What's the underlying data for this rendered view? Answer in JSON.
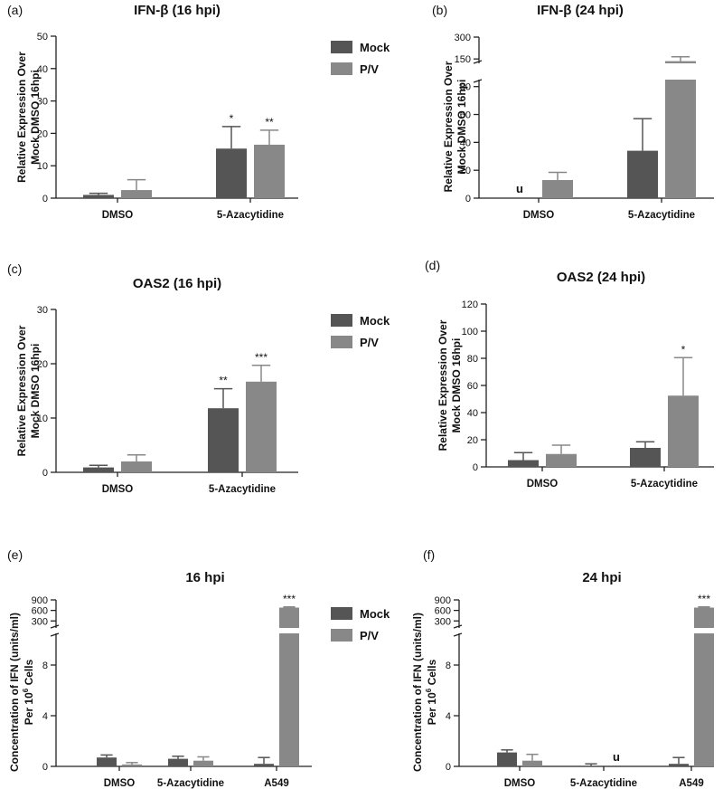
{
  "colors": {
    "mock": "#555555",
    "pv": "#888888",
    "axis": "#222222"
  },
  "legend": {
    "mock": "Mock",
    "pv": "P/V"
  },
  "chart_data": [
    {
      "id": "a",
      "panel_label": "(a)",
      "type": "bar",
      "title": "IFN-β (16 hpi)",
      "ylabel": [
        "Relative Expression Over",
        "Mock DMSO 16hpi"
      ],
      "categories": [
        "DMSO",
        "5-Azacytidine"
      ],
      "series": [
        {
          "name": "Mock",
          "values": [
            1.0,
            15.3
          ],
          "errors": [
            0.5,
            6.8
          ],
          "annotations": [
            "",
            "*"
          ]
        },
        {
          "name": "P/V",
          "values": [
            2.5,
            16.5
          ],
          "errors": [
            3.2,
            4.5
          ],
          "annotations": [
            "",
            "**"
          ]
        }
      ],
      "ylim": [
        0,
        50
      ],
      "yticks": [
        "0",
        "10",
        "20",
        "30",
        "40",
        "50"
      ],
      "legend": "right"
    },
    {
      "id": "b",
      "panel_label": "(b)",
      "type": "bar",
      "title": "IFN-β (24 hpi)",
      "ylabel": [
        "Relative Expression Over",
        "Mock DMSO 16hpi"
      ],
      "categories": [
        "DMSO",
        "5-Azacytidine"
      ],
      "series": [
        {
          "name": "Mock",
          "values": [
            0,
            34
          ],
          "errors": [
            0,
            23
          ],
          "annotations": [
            "u",
            ""
          ]
        },
        {
          "name": "P/V",
          "values": [
            13,
            135
          ],
          "errors": [
            5.5,
            30
          ],
          "annotations": [
            "",
            ""
          ]
        }
      ],
      "ylim_lower": [
        0,
        85
      ],
      "ylim_upper": [
        120,
        300
      ],
      "yticks": [
        "0",
        "20",
        "40",
        "60",
        "80",
        "150",
        "300"
      ]
    },
    {
      "id": "c",
      "panel_label": "(c)",
      "type": "bar",
      "title": "OAS2 (16 hpi)",
      "ylabel": [
        "Relative Expression Over",
        "Mock DMSO 16hpi"
      ],
      "categories": [
        "DMSO",
        "5-Azacytidine"
      ],
      "series": [
        {
          "name": "Mock",
          "values": [
            0.9,
            11.8
          ],
          "errors": [
            0.4,
            3.6
          ],
          "annotations": [
            "",
            "**"
          ]
        },
        {
          "name": "P/V",
          "values": [
            2.0,
            16.7
          ],
          "errors": [
            1.2,
            3.0
          ],
          "annotations": [
            "",
            "***"
          ]
        }
      ],
      "ylim": [
        0,
        30
      ],
      "yticks": [
        "0",
        "10",
        "20",
        "30"
      ],
      "legend": "right"
    },
    {
      "id": "d",
      "panel_label": "(d)",
      "type": "bar",
      "title": "OAS2 (24 hpi)",
      "ylabel": [
        "Relative Expression Over",
        "Mock DMSO 16hpi"
      ],
      "categories": [
        "DMSO",
        "5-Azacytidine"
      ],
      "series": [
        {
          "name": "Mock",
          "values": [
            5,
            14
          ],
          "errors": [
            5.5,
            4.5
          ],
          "annotations": [
            "",
            ""
          ]
        },
        {
          "name": "P/V",
          "values": [
            9.5,
            52.5
          ],
          "errors": [
            6.5,
            28
          ],
          "annotations": [
            "",
            "*"
          ]
        }
      ],
      "ylim": [
        0,
        120
      ],
      "yticks": [
        "0",
        "20",
        "40",
        "60",
        "80",
        "100",
        "120"
      ]
    },
    {
      "id": "e",
      "panel_label": "(e)",
      "type": "bar",
      "title": "16 hpi",
      "ylabel": [
        "Concentration of IFN (units/ml)",
        "Per 10",
        "6",
        " Cells"
      ],
      "categories": [
        "DMSO",
        "5-Azacytidine",
        "A549"
      ],
      "series": [
        {
          "name": "Mock",
          "values": [
            0.7,
            0.6,
            0.2
          ],
          "errors": [
            0.2,
            0.2,
            0.5
          ],
          "annotations": [
            "",
            "",
            ""
          ]
        },
        {
          "name": "P/V",
          "values": [
            0.15,
            0.45,
            680
          ],
          "errors": [
            0.15,
            0.3,
            20
          ],
          "annotations": [
            "",
            "",
            "***"
          ]
        }
      ],
      "ylim_lower": [
        0,
        10.5
      ],
      "ylim_upper": [
        100,
        900
      ],
      "yticks": [
        "0",
        "4",
        "8",
        "300",
        "600",
        "900"
      ],
      "legend": "right"
    },
    {
      "id": "f",
      "panel_label": "(f)",
      "type": "bar",
      "title": "24 hpi",
      "ylabel": [
        "Concentration of IFN (units/ml)",
        "Per 10",
        "6",
        " Cells"
      ],
      "categories": [
        "DMSO",
        "5-Azacytidine",
        "A549"
      ],
      "series": [
        {
          "name": "Mock",
          "values": [
            1.1,
            0.05,
            0.2
          ],
          "errors": [
            0.2,
            0.15,
            0.5
          ],
          "annotations": [
            "",
            "",
            ""
          ]
        },
        {
          "name": "P/V",
          "values": [
            0.45,
            0,
            680
          ],
          "errors": [
            0.5,
            0,
            20
          ],
          "annotations": [
            "",
            "u",
            "***"
          ]
        }
      ],
      "ylim_lower": [
        0,
        10.5
      ],
      "ylim_upper": [
        100,
        900
      ],
      "yticks": [
        "0",
        "4",
        "8",
        "300",
        "600",
        "900"
      ]
    }
  ]
}
